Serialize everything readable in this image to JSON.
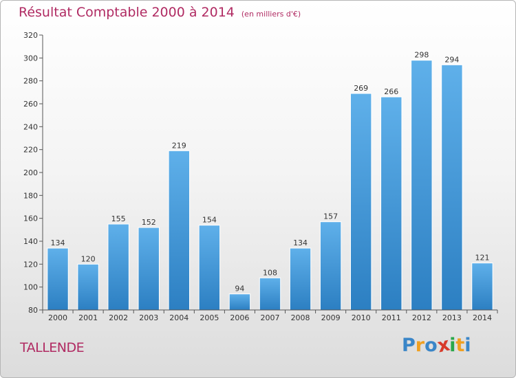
{
  "title": "Résultat Comptable 2000 à 2014",
  "unit_label": "(en milliers d'€)",
  "commune": "TALLENDE",
  "logo": {
    "letters": [
      "P",
      "r",
      "o",
      "x",
      "i",
      "t",
      "i"
    ],
    "colors": [
      "#3a86c8",
      "#f0a020",
      "#3a86c8",
      "#d83a2a",
      "#2aa84a",
      "#f0a020",
      "#3a86c8"
    ]
  },
  "colors": {
    "bar_light": "#5fb0ea",
    "bar_dark": "#2c7fc2",
    "title": "#b02a62"
  },
  "chart_data": {
    "type": "bar",
    "categories": [
      "2000",
      "2001",
      "2002",
      "2003",
      "2004",
      "2005",
      "2006",
      "2007",
      "2008",
      "2009",
      "2010",
      "2011",
      "2012",
      "2013",
      "2014"
    ],
    "values": [
      134,
      120,
      155,
      152,
      219,
      154,
      94,
      108,
      134,
      157,
      269,
      266,
      298,
      294,
      121
    ],
    "ylim": [
      80,
      320
    ],
    "yticks": [
      80,
      100,
      120,
      140,
      160,
      180,
      200,
      220,
      240,
      260,
      280,
      300,
      320
    ],
    "grid": false,
    "legend": "none"
  }
}
